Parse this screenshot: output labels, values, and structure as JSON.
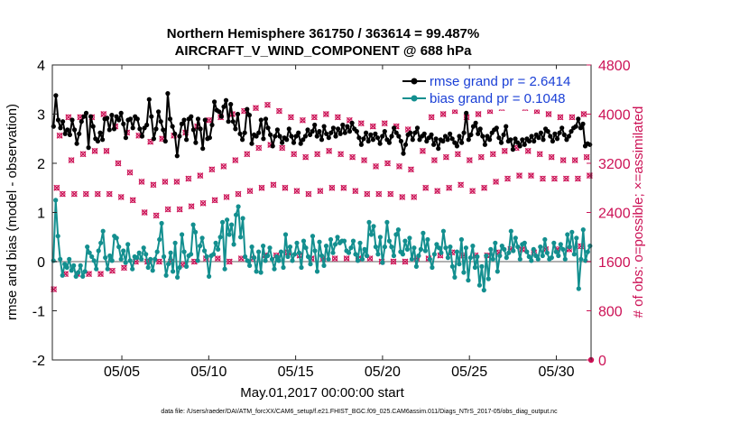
{
  "chart_data": {
    "type": "line",
    "title": "Northern Hemisphere 361750 / 363614 = 99.487%",
    "subtitle": "AIRCRAFT_V_WIND_COMPONENT @ 688 hPa",
    "xlabel": "May.01,2017 00:00:00 start",
    "ylabel": "rmse and bias (model - observation)",
    "ylabel_right": "# of obs: o=possible; ×=assimilated",
    "footer": "data file: /Users/raeder/DAI/ATM_forcXX/CAM6_setup/f.e21.FHIST_BGC.f09_025.CAM6assim.011/Diags_NTrS_2017-05/obs_diag_output.nc",
    "xlim": [
      1.0,
      32.0
    ],
    "ylim": [
      -2,
      4
    ],
    "ylim_right": [
      0,
      4800
    ],
    "x_ticks": [
      5,
      10,
      15,
      20,
      25,
      30
    ],
    "x_tick_labels": [
      "05/05",
      "05/10",
      "05/15",
      "05/20",
      "05/25",
      "05/30"
    ],
    "y_ticks": [
      "-2",
      "-1",
      "0",
      "1",
      "2",
      "3",
      "4"
    ],
    "y_ticks_right": [
      "0",
      "800",
      "1600",
      "2400",
      "3200",
      "4000",
      "4800"
    ],
    "colors": {
      "rmse": "#000000",
      "bias": "#138f8f",
      "obs": "#cc1256",
      "zero": "#b0b0b0"
    },
    "legend_position": "top-right",
    "series": [
      {
        "name": "rmse grand pr = 2.6414",
        "values": [
          2.75,
          3.38,
          2.88,
          2.72,
          2.85,
          2.6,
          2.68,
          2.58,
          2.88,
          2.68,
          2.4,
          2.6,
          2.85,
          2.95,
          3.02,
          2.32,
          2.95,
          2.75,
          2.5,
          2.45,
          2.62,
          2.48,
          2.9,
          2.92,
          2.68,
          2.98,
          2.7,
          2.95,
          2.88,
          3.02,
          2.8,
          2.52,
          2.88,
          2.9,
          2.72,
          2.95,
          2.9,
          2.7,
          2.55,
          2.72,
          2.78,
          3.3,
          2.95,
          2.5,
          2.7,
          3.05,
          2.85,
          2.68,
          2.45,
          3.42,
          2.9,
          2.75,
          2.6,
          2.15,
          2.55,
          2.8,
          2.88,
          2.48,
          2.9,
          2.95,
          2.68,
          2.42,
          2.9,
          2.7,
          2.3,
          2.88,
          2.5,
          2.52,
          2.78,
          3.25,
          3.08,
          3.05,
          2.95,
          3.15,
          3.28,
          2.85,
          3.2,
          2.85,
          2.7,
          3.0,
          2.6,
          2.48,
          2.62,
          3.1,
          2.98,
          2.4,
          2.58,
          2.55,
          2.62,
          2.88,
          2.5,
          2.9,
          2.72,
          2.58,
          2.35,
          2.55,
          2.68,
          2.55,
          2.42,
          2.52,
          2.48,
          2.7,
          2.55,
          2.42,
          2.55,
          2.62,
          2.4,
          2.48,
          2.55,
          2.68,
          2.58,
          2.65,
          2.78,
          2.55,
          2.65,
          2.48,
          2.75,
          2.6,
          2.52,
          2.62,
          2.72,
          2.55,
          2.7,
          2.6,
          2.78,
          2.62,
          2.75,
          2.65,
          2.82,
          2.7,
          2.65,
          2.52,
          2.38,
          2.5,
          2.62,
          2.45,
          2.58,
          2.48,
          2.6,
          2.52,
          2.4,
          2.55,
          2.65,
          2.48,
          2.42,
          2.55,
          2.72,
          2.62,
          2.55,
          2.45,
          2.2,
          2.38,
          2.58,
          2.62,
          2.48,
          2.62,
          2.72,
          2.48,
          2.55,
          2.6,
          2.45,
          2.52,
          2.58,
          2.38,
          2.5,
          2.3,
          2.48,
          2.45,
          2.55,
          2.48,
          2.6,
          2.5,
          2.42,
          2.35,
          2.55,
          2.42,
          2.62,
          3.02,
          2.48,
          2.58,
          2.75,
          2.82,
          2.6,
          2.7,
          2.55,
          2.38,
          2.55,
          2.48,
          2.62,
          2.68,
          2.72,
          2.52,
          2.42,
          2.58,
          2.75,
          2.45,
          2.48,
          2.28,
          2.5,
          2.42,
          2.35,
          2.48,
          2.38,
          2.5,
          2.45,
          2.55,
          2.45,
          2.58,
          2.52,
          2.62,
          2.48,
          2.7,
          2.65,
          2.55,
          2.45,
          2.6,
          2.5,
          2.62,
          2.72,
          2.58,
          2.48,
          2.55,
          2.65,
          2.72,
          2.75,
          2.9,
          2.72,
          2.8,
          2.35,
          2.4,
          2.38
        ]
      },
      {
        "name": "bias grand pr = 0.1048",
        "values": [
          0.02,
          1.25,
          0.52,
          0.05,
          -0.28,
          -0.05,
          -0.12,
          0.05,
          -0.18,
          -0.08,
          -0.3,
          -0.22,
          -0.08,
          -0.3,
          -0.2,
          0.3,
          0.18,
          0.1,
          0.02,
          -0.15,
          0.22,
          0.38,
          0.62,
          0.08,
          -0.15,
          0.12,
          0.02,
          0.52,
          0.48,
          0.3,
          0.05,
          0.22,
          -0.02,
          0.35,
          0.02,
          -0.15,
          0.1,
          0.08,
          0.18,
          0.05,
          0.28,
          0.15,
          -0.12,
          0.05,
          -0.18,
          0.05,
          0.2,
          0.45,
          0.78,
          0.1,
          -0.28,
          -0.05,
          0.18,
          -0.2,
          0.38,
          -0.32,
          -0.12,
          0.55,
          0.2,
          -0.1,
          0.12,
          0.15,
          0.75,
          0.6,
          0.02,
          0.32,
          0.48,
          0.22,
          0.1,
          -0.3,
          0.12,
          0.15,
          0.38,
          0.25,
          0.5,
          0.8,
          -0.15,
          0.85,
          0.55,
          0.75,
          0.35,
          0.95,
          1.12,
          0.5,
          0.88,
          0.1,
          0.02,
          -0.08,
          0.3,
          0.08,
          -0.2,
          0.2,
          -0.22,
          0.32,
          0.02,
          0.12,
          0.28,
          0.05,
          -0.15,
          0.1,
          0.02,
          0.2,
          -0.12,
          0.55,
          0.1,
          0.3,
          0.02,
          0.15,
          0.38,
          0.18,
          -0.12,
          0.42,
          0.28,
          0.1,
          -0.05,
          0.52,
          0.22,
          -0.2,
          0.4,
          0.12,
          -0.08,
          0.32,
          0.05,
          0.45,
          0.18,
          0.35,
          0.5,
          0.38,
          0.42,
          0.42,
          0.22,
          0.18,
          0.28,
          0.42,
          0.15,
          0.02,
          0.38,
          0.05,
          0.25,
          0.12,
          0.8,
          0.55,
          0.72,
          0.3,
          0.15,
          0.5,
          -0.02,
          0.3,
          0.8,
          0.42,
          0.3,
          0.12,
          0.55,
          0.65,
          0.2,
          0.15,
          0.42,
          0.25,
          0.48,
          0.05,
          0.28,
          -0.1,
          0.12,
          0.25,
          0.58,
          0.22,
          0.45,
          0.05,
          -0.12,
          0.15,
          0.35,
          0.28,
          0.18,
          0.62,
          0.28,
          0.08,
          0.3,
          -0.1,
          -0.32,
          0.2,
          -0.05,
          0.45,
          -0.22,
          0.28,
          -0.38,
          0.08,
          0.32,
          -0.12,
          0.1,
          -0.48,
          -0.1,
          -0.58,
          0.12,
          -0.35,
          0.25,
          0.05,
          0.38,
          -0.2,
          0.12,
          0.32,
          0.25,
          0.08,
          0.18,
          0.62,
          0.22,
          0.48,
          0.3,
          0.05,
          0.35,
          0.38,
          0.2,
          0.1,
          0.02,
          0.25,
          0.12,
          0.05,
          0.3,
          0.12,
          0.45,
          0.18,
          0.05,
          0.08,
          0.38,
          0.2,
          0.12,
          0.35,
          0.25,
          0.05,
          0.55,
          0.3,
          0.6,
          0.15,
          0.48,
          -0.55,
          0.05,
          0.65,
          0.02,
          0.2,
          0.32
        ]
      }
    ],
    "obs_series": {
      "name": "# of obs",
      "values": [
        1150,
        2800,
        3650,
        2700,
        1400,
        3950,
        3250,
        2700,
        1400,
        3950,
        3350,
        2700,
        1400,
        3950,
        3400,
        2700,
        1400,
        4000,
        3400,
        2700,
        1450,
        3800,
        3200,
        2650,
        1500,
        3700,
        3050,
        2600,
        1600,
        3650,
        2900,
        2400,
        1600,
        3550,
        2850,
        2350,
        1600,
        3600,
        2900,
        2450,
        1600,
        3650,
        2900,
        2450,
        1550,
        3700,
        2950,
        2500,
        1600,
        3800,
        3000,
        2550,
        1650,
        3900,
        3100,
        2600,
        1650,
        3950,
        3150,
        2650,
        1600,
        4000,
        3250,
        2700,
        1650,
        4050,
        3350,
        2750,
        1650,
        4100,
        3450,
        2800,
        1700,
        4150,
        3500,
        2850,
        1700,
        4050,
        3450,
        2800,
        1750,
        3950,
        3350,
        2750,
        1700,
        3900,
        3300,
        2700,
        1650,
        3950,
        3350,
        2750,
        1650,
        4000,
        3400,
        2800,
        1650,
        3950,
        3350,
        2800,
        1650,
        3900,
        3300,
        2750,
        1650,
        3850,
        3250,
        2700,
        1650,
        3800,
        3150,
        2700,
        1600,
        3850,
        3200,
        2700,
        1600,
        3800,
        3150,
        2650,
        1600,
        3750,
        3100,
        2650,
        1650,
        4300,
        3400,
        2800,
        1650,
        3950,
        3250,
        2750,
        1700,
        4000,
        3300,
        2800,
        1750,
        4050,
        3350,
        2850,
        1700,
        3950,
        3250,
        2750,
        1700,
        4000,
        3300,
        2800,
        1700,
        4050,
        3350,
        2900,
        1750,
        4100,
        3400,
        2950,
        1800,
        4150,
        3450,
        3000,
        1800,
        4100,
        3400,
        3000,
        1750,
        4050,
        3350,
        2950,
        1800,
        4000,
        3300,
        2950,
        1800,
        3950,
        3250,
        2950,
        1800,
        3950,
        3250,
        2950,
        1850,
        4000,
        3300,
        3000
      ]
    }
  }
}
